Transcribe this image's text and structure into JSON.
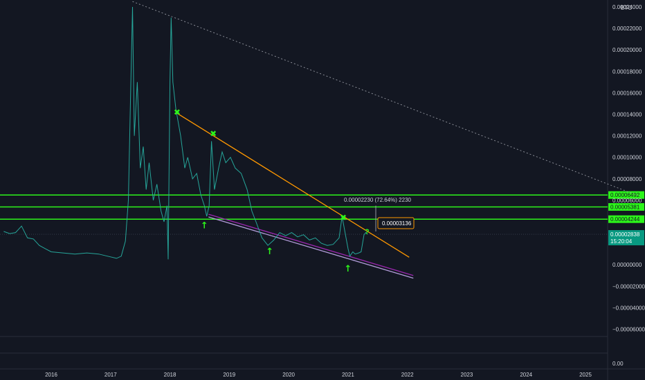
{
  "chart_data": {
    "type": "line",
    "unit": "BTC",
    "x_labels": [
      "2016",
      "2017",
      "2018",
      "2019",
      "2020",
      "2021",
      "2022",
      "2023",
      "2024",
      "2025"
    ],
    "x_range": [
      2015.2,
      2025.9
    ],
    "y_range": [
      -6e-05,
      2.45e-05
    ],
    "y_ticks": [
      {
        "value": 0.00024,
        "label": "0.00024000"
      },
      {
        "value": 0.00022,
        "label": "0.00022000"
      },
      {
        "value": 0.0002,
        "label": "0.00020000"
      },
      {
        "value": 0.00018,
        "label": "0.00018000"
      },
      {
        "value": 0.00016,
        "label": "0.00016000"
      },
      {
        "value": 0.00014,
        "label": "0.00014000"
      },
      {
        "value": 0.00012,
        "label": "0.00012000"
      },
      {
        "value": 0.0001,
        "label": "0.00010000"
      },
      {
        "value": 8e-05,
        "label": "0.00008000"
      },
      {
        "value": 6e-05,
        "label": "0.00006000"
      },
      {
        "value": 2e-05,
        "label": "0.00002000"
      },
      {
        "value": 0.0,
        "label": "0.00000000"
      },
      {
        "value": -2e-05,
        "label": "−0.00002000"
      },
      {
        "value": -4e-05,
        "label": "−0.00004000"
      },
      {
        "value": -6e-05,
        "label": "−0.00006000"
      }
    ],
    "horizontal_levels": [
      {
        "value": 6.492e-05,
        "label": "0.00006492"
      },
      {
        "value": 5.381e-05,
        "label": "0.00005381"
      },
      {
        "value": 4.244e-05,
        "label": "0.00004244"
      }
    ],
    "last_price": {
      "value": 2.838e-05,
      "label": "0.00002838",
      "countdown": "15:20:04"
    },
    "measure_label": "0.00002230 (72.64%) 2230",
    "callout_label": "0.00003136",
    "question_mark": "?",
    "price_series": [
      [
        2015.2,
        3.1e-05
      ],
      [
        2015.3,
        2.9e-05
      ],
      [
        2015.4,
        3e-05
      ],
      [
        2015.5,
        3.6e-05
      ],
      [
        2015.6,
        2.5e-05
      ],
      [
        2015.7,
        2.4e-05
      ],
      [
        2015.8,
        1.8e-05
      ],
      [
        2015.9,
        1.5e-05
      ],
      [
        2016.0,
        1.2e-05
      ],
      [
        2016.2,
        1.1e-05
      ],
      [
        2016.4,
        1e-05
      ],
      [
        2016.6,
        1.1e-05
      ],
      [
        2016.8,
        1e-05
      ],
      [
        2016.95,
        8e-06
      ],
      [
        2017.1,
        6e-06
      ],
      [
        2017.18,
        8e-06
      ],
      [
        2017.25,
        2.2e-05
      ],
      [
        2017.3,
        6e-05
      ],
      [
        2017.33,
        0.00014
      ],
      [
        2017.37,
        0.00024
      ],
      [
        2017.4,
        0.00012
      ],
      [
        2017.45,
        0.00017
      ],
      [
        2017.5,
        9e-05
      ],
      [
        2017.55,
        0.00011
      ],
      [
        2017.6,
        7e-05
      ],
      [
        2017.65,
        9.5e-05
      ],
      [
        2017.72,
        6e-05
      ],
      [
        2017.78,
        7.5e-05
      ],
      [
        2017.85,
        5e-05
      ],
      [
        2017.9,
        4e-05
      ],
      [
        2017.95,
        5.5e-05
      ],
      [
        2017.97,
        5e-06
      ],
      [
        2018.0,
        0.00017
      ],
      [
        2018.02,
        0.00023
      ],
      [
        2018.05,
        0.00017
      ],
      [
        2018.1,
        0.000145
      ],
      [
        2018.18,
        0.00012
      ],
      [
        2018.25,
        9e-05
      ],
      [
        2018.3,
        0.0001
      ],
      [
        2018.38,
        8e-05
      ],
      [
        2018.45,
        8.5e-05
      ],
      [
        2018.52,
        6.5e-05
      ],
      [
        2018.58,
        5.5e-05
      ],
      [
        2018.62,
        4.5e-05
      ],
      [
        2018.66,
        5.5e-05
      ],
      [
        2018.7,
        0.000115
      ],
      [
        2018.75,
        7e-05
      ],
      [
        2018.82,
        9e-05
      ],
      [
        2018.88,
        0.000105
      ],
      [
        2018.94,
        9.5e-05
      ],
      [
        2019.02,
        0.0001
      ],
      [
        2019.1,
        9e-05
      ],
      [
        2019.2,
        8.5e-05
      ],
      [
        2019.3,
        7e-05
      ],
      [
        2019.38,
        5e-05
      ],
      [
        2019.45,
        4e-05
      ],
      [
        2019.55,
        2.5e-05
      ],
      [
        2019.65,
        1.8e-05
      ],
      [
        2019.75,
        2.3e-05
      ],
      [
        2019.85,
        3e-05
      ],
      [
        2019.95,
        2.7e-05
      ],
      [
        2020.05,
        3e-05
      ],
      [
        2020.15,
        2.6e-05
      ],
      [
        2020.25,
        2.8e-05
      ],
      [
        2020.35,
        2.3e-05
      ],
      [
        2020.45,
        2.5e-05
      ],
      [
        2020.55,
        2e-05
      ],
      [
        2020.65,
        1.8e-05
      ],
      [
        2020.75,
        1.9e-05
      ],
      [
        2020.85,
        2.5e-05
      ],
      [
        2020.9,
        4.5e-05
      ],
      [
        2020.95,
        3e-05
      ],
      [
        2021.0,
        1.5e-05
      ],
      [
        2021.03,
        8e-06
      ],
      [
        2021.08,
        1.2e-05
      ],
      [
        2021.12,
        1e-05
      ],
      [
        2021.18,
        1.1e-05
      ],
      [
        2021.22,
        1.2e-05
      ],
      [
        2021.27,
        2.8e-05
      ],
      [
        2021.3,
        3e-05
      ],
      [
        2021.33,
        2.84e-05
      ]
    ],
    "trendlines": [
      {
        "name": "long-dotted-resistance",
        "color": "#9598a1",
        "dash": true,
        "from": [
          2017.37,
          0.000245
        ],
        "to": [
          2025.9,
          6.4e-05
        ]
      },
      {
        "name": "orange-resistance",
        "color": "#ff9800",
        "dash": false,
        "from": [
          2018.12,
          0.000141
        ],
        "to": [
          2022.03,
          7e-06
        ]
      },
      {
        "name": "purple-support-upper",
        "color": "#9c27b0",
        "dash": false,
        "from": [
          2018.65,
          4.7e-05
        ],
        "to": [
          2022.1,
          -1e-05
        ]
      },
      {
        "name": "purple-support-lower",
        "color": "#b39ddb",
        "dash": false,
        "from": [
          2018.65,
          4.45e-05
        ],
        "to": [
          2022.1,
          -1.25e-05
        ]
      }
    ],
    "x_marks": [
      {
        "x": 2018.12,
        "y": 0.000142
      },
      {
        "x": 2018.73,
        "y": 0.000122
      },
      {
        "x": 2020.92,
        "y": 4.4e-05
      }
    ],
    "up_arrows": [
      {
        "x": 2018.58,
        "y": 3.7e-05
      },
      {
        "x": 2019.68,
        "y": 1.3e-05
      },
      {
        "x": 2021.0,
        "y": -3e-06
      }
    ],
    "colors": {
      "up": "#26a69a",
      "down": "#ef5350",
      "level": "#2cf51a",
      "orange": "#ff9800",
      "purple": "#9c27b0",
      "background": "#131722"
    }
  }
}
